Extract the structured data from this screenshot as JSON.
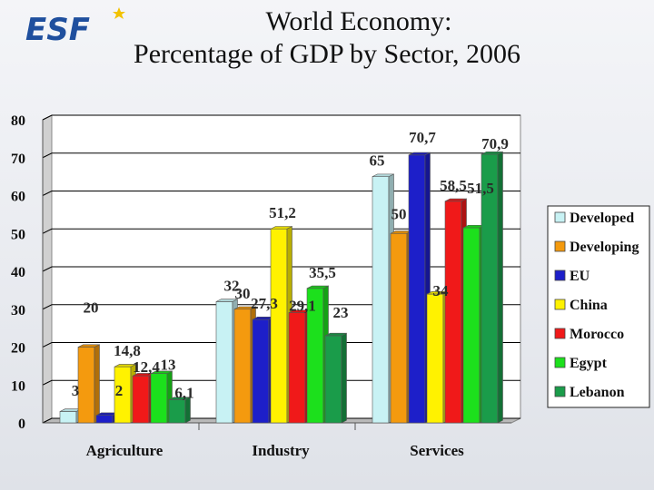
{
  "header": {
    "title_line1": "World Economy:",
    "title_line2": "Percentage of GDP by Sector, 2006",
    "logo_text": "ESF"
  },
  "chart_data": {
    "type": "bar",
    "title": "World Economy: Percentage of GDP by Sector, 2006",
    "categories": [
      "Agriculture",
      "Industry",
      "Services"
    ],
    "ylim": [
      0,
      80
    ],
    "yticks": [
      0,
      10,
      20,
      30,
      40,
      50,
      60,
      70,
      80
    ],
    "grid": true,
    "legend_position": "right",
    "xlabel": "",
    "ylabel": "",
    "series": [
      {
        "name": "Developed",
        "color": "#c8f2f4",
        "values": [
          3,
          32,
          65
        ],
        "labels": [
          "3",
          "32",
          "65"
        ]
      },
      {
        "name": "Developing",
        "color": "#f49a0e",
        "values": [
          20,
          30,
          50
        ],
        "labels": [
          "20",
          "30",
          "50"
        ]
      },
      {
        "name": "EU",
        "color": "#1d1fc9",
        "values": [
          2,
          27.3,
          70.7
        ],
        "labels": [
          "2",
          "27,3",
          "70,7"
        ]
      },
      {
        "name": "China",
        "color": "#fff200",
        "values": [
          14.8,
          51.2,
          34
        ],
        "labels": [
          "14,8",
          "51,2",
          "34"
        ]
      },
      {
        "name": "Morocco",
        "color": "#f01919",
        "values": [
          12.4,
          29.1,
          58.5
        ],
        "labels": [
          "12,4",
          "29,1",
          "58,5"
        ]
      },
      {
        "name": "Egypt",
        "color": "#1ce01c",
        "values": [
          13,
          35.5,
          51.5
        ],
        "labels": [
          "13",
          "35,5",
          "51,5"
        ]
      },
      {
        "name": "Lebanon",
        "color": "#1a9c4a",
        "values": [
          6.1,
          23,
          70.9
        ],
        "labels": [
          "6,1",
          "23",
          "70,9"
        ]
      }
    ]
  }
}
